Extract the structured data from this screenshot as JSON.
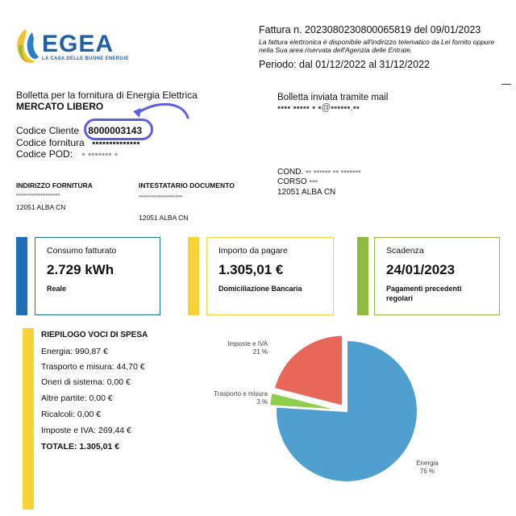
{
  "header": {
    "logo_name": "EGEA",
    "logo_tagline": "LA CASA DELLE BUONE ENERGIE",
    "invoice_number": "Fattura n. 2023080230800065819 del 09/01/2023",
    "invoice_note": "La fattura elettronica è disponibile all'indirizzo telematico da Lei fornito oppure nella Sua area riservata dell'Agenzia delle Entrate.",
    "period": "Periodo: dal 01/12/2022 al 31/12/2022"
  },
  "bill": {
    "title": "Bolletta per la fornitura di Energia Elettrica",
    "market": "MERCATO LIBERO",
    "sent_by": "Bolletta inviata tramite mail",
    "customer_code_label": "Codice Cliente",
    "customer_code": "8000003143",
    "supply_code_label": "Codice fornitura",
    "pod_label": "Codice POD:"
  },
  "addresses": {
    "supply_header": "INDIRIZZO FORNITURA",
    "supply_city": "12051 ALBA CN",
    "holder_header": "INTESTATARIO DOCUMENTO",
    "holder_city": "12051 ALBA CN",
    "recipient_line1": "COND.",
    "recipient_line2": "CORSO",
    "recipient_city": "12051 ALBA CN"
  },
  "cards": [
    {
      "label": "Consumo fatturato",
      "value": "2.729 kWh",
      "sub": "Reale",
      "color": "#1f6fb5"
    },
    {
      "label": "Importo da pagare",
      "value": "1.305,01 €",
      "sub": "Domiciliazione Bancaria",
      "color": "#f7d238"
    },
    {
      "label": "Scadenza",
      "value": "24/01/2023",
      "sub": "Pagamenti precedenti regolari",
      "color": "#8dbb3f"
    }
  ],
  "summary": {
    "title": "RIEPILOGO VOCI DI SPESA",
    "items": [
      "Energia: 990,87 €",
      "Trasporto e misura: 44,70 €",
      "Oneri di sistema: 0,00 €",
      "Altre partite: 0,00 €",
      "Ricalcoli: 0,00 €",
      "Imposte e IVA: 269,44 €"
    ],
    "total": "TOTALE: 1.305,01 €"
  },
  "chart_data": {
    "type": "pie",
    "slices": [
      {
        "label": "Energia",
        "percent_label": "76 %",
        "value": 76,
        "color": "#4f9fd0"
      },
      {
        "label": "Imposte e IVA",
        "percent_label": "21 %",
        "value": 21,
        "color": "#e8685a"
      },
      {
        "label": "Trasporto e misura",
        "percent_label": "3 %",
        "value": 3,
        "color": "#8fce4a"
      }
    ]
  }
}
